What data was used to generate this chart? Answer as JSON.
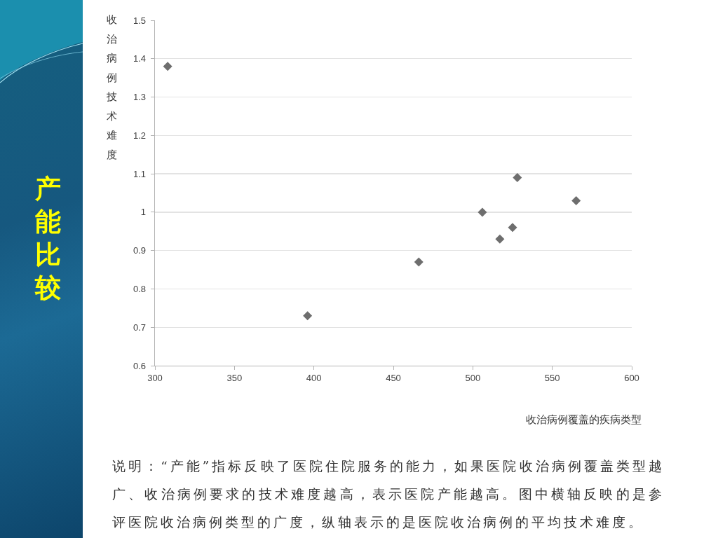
{
  "chart_data": {
    "type": "scatter",
    "title": "产能比较",
    "xlabel": "收治病例覆盖的疾病类型",
    "ylabel": "收治病例技术难度",
    "annotations": [
      "说明：“产能”指标反映了医院住院服务的能力，如果医院收治病例覆盖类型越广、收治病例要求的技术难度越高，表示医院产能越高。图中横轴反映的是参评医院收治病例类型的广度，纵轴表示的是医院收治病例的平均技术难度。"
    ],
    "x": [
      308,
      396,
      466,
      506,
      517,
      525,
      528,
      565
    ],
    "values": [
      1.38,
      0.73,
      0.87,
      1.0,
      0.93,
      0.96,
      1.09,
      1.03
    ],
    "color": "#6e6e6e",
    "marker": "diamond",
    "xlim": [
      300,
      600
    ],
    "xticks": [
      300,
      350,
      400,
      450,
      500,
      550,
      600
    ],
    "ylim": [
      0.6,
      1.5
    ],
    "yticks": [
      0.6,
      0.7,
      0.8,
      0.9,
      1,
      1.1,
      1.2,
      1.3,
      1.4,
      1.5
    ],
    "grid": "y"
  }
}
